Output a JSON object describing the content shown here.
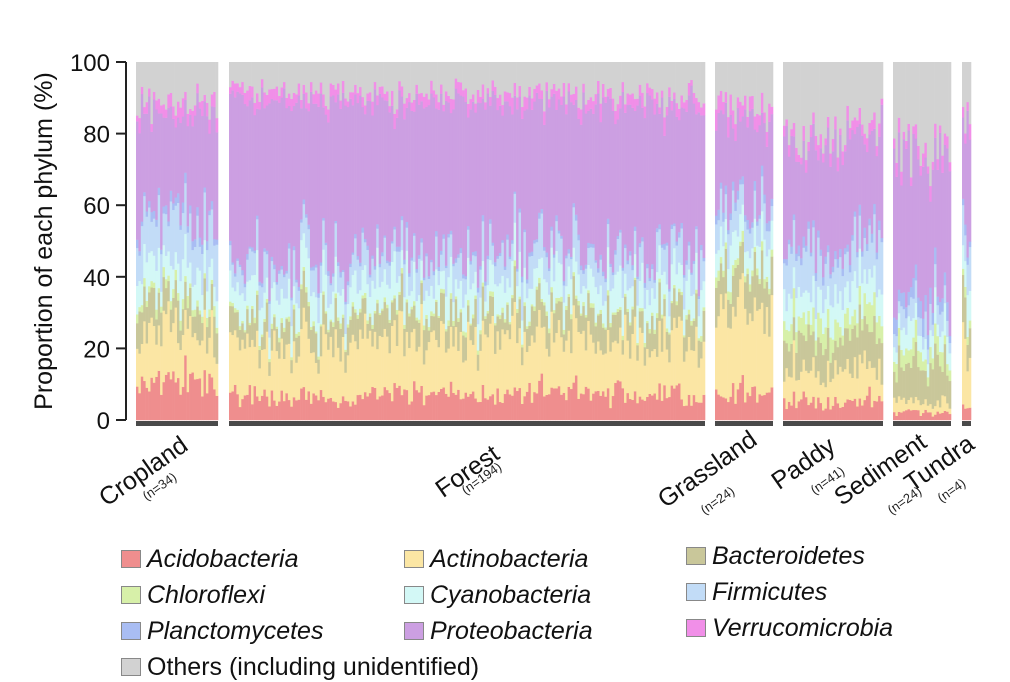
{
  "chart_data": {
    "type": "bar",
    "stacked": true,
    "ylabel": "Proportion of each phylum (%)",
    "ylim": [
      0,
      100
    ],
    "yticks": [
      0,
      20,
      40,
      60,
      80,
      100
    ],
    "grid": false,
    "legend_position": "bottom",
    "groups": [
      {
        "name": "Cropland",
        "n_label": "(n=34)",
        "n": 34
      },
      {
        "name": "Forest",
        "n_label": "(n=194)",
        "n": 194
      },
      {
        "name": "Grassland",
        "n_label": "(n=24)",
        "n": 24
      },
      {
        "name": "Paddy",
        "n_label": "(n=41)",
        "n": 41
      },
      {
        "name": "Sediment",
        "n_label": "(n=24)",
        "n": 24
      },
      {
        "name": "Tundra",
        "n_label": "(n=4)",
        "n": 4
      }
    ],
    "series_order": [
      "Acidobacteria",
      "Actinobacteria",
      "Bacteroidetes",
      "Chloroflexi",
      "Cyanobacteria",
      "Firmicutes",
      "Planctomycetes",
      "Proteobacteria",
      "Verrucomicrobia",
      "Others (including unidentified)"
    ],
    "group_mean_composition": [
      {
        "group": "Cropland",
        "values": [
          10,
          15,
          8,
          2,
          8,
          12,
          2,
          28,
          3,
          12
        ]
      },
      {
        "group": "Forest",
        "values": [
          7,
          15,
          7,
          1,
          8,
          7,
          1,
          42,
          3,
          9
        ]
      },
      {
        "group": "Grassland",
        "values": [
          8,
          22,
          10,
          2,
          8,
          8,
          2,
          24,
          4,
          12
        ]
      },
      {
        "group": "Paddy",
        "values": [
          5,
          9,
          9,
          5,
          8,
          12,
          2,
          28,
          3,
          19
        ]
      },
      {
        "group": "Sediment",
        "values": [
          2,
          3,
          10,
          4,
          6,
          5,
          4,
          38,
          3,
          25
        ]
      },
      {
        "group": "Tundra",
        "values": [
          5,
          18,
          10,
          2,
          10,
          8,
          2,
          28,
          4,
          13
        ]
      }
    ]
  },
  "legend": [
    {
      "name": "Acidobacteria",
      "color": "#ef8e8e"
    },
    {
      "name": "Actinobacteria",
      "color": "#fbe6a4"
    },
    {
      "name": "Bacteroidetes",
      "color": "#c9c79a"
    },
    {
      "name": "Chloroflexi",
      "color": "#d7f0a9"
    },
    {
      "name": "Cyanobacteria",
      "color": "#d3f8f6"
    },
    {
      "name": "Firmicutes",
      "color": "#c2dcf7"
    },
    {
      "name": "Planctomycetes",
      "color": "#a9bdf3"
    },
    {
      "name": "Proteobacteria",
      "color": "#cc9fe2"
    },
    {
      "name": "Verrucomicrobia",
      "color": "#f18fe8"
    },
    {
      "name": "Others (including unidentified)",
      "color": "#d2d2d2"
    }
  ]
}
